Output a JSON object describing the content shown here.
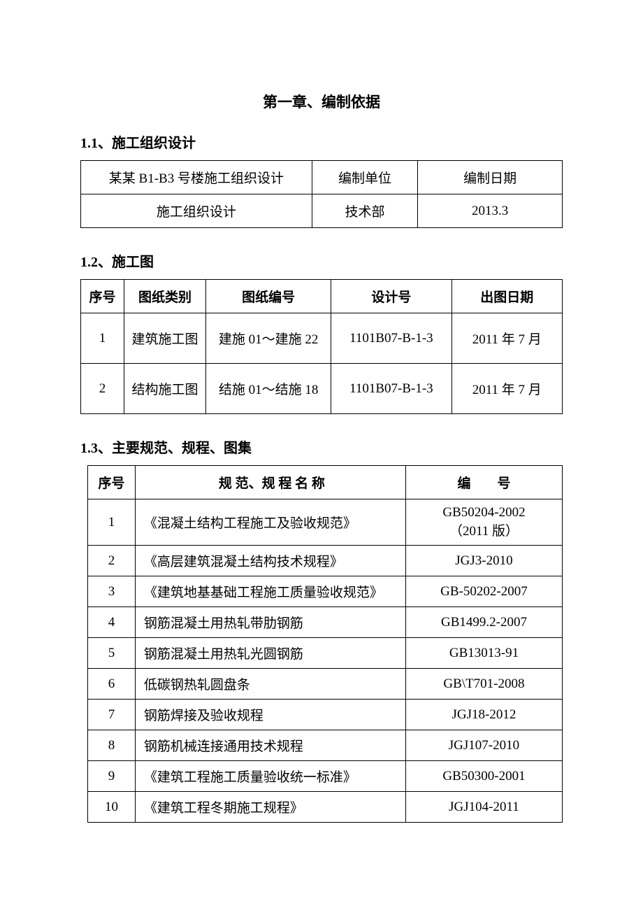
{
  "chapter_title": "第一章、编制依据",
  "section_1_1": {
    "title": "1.1、施工组织设计",
    "table": {
      "columns": [
        "某某 B1-B3 号楼施工组织设计",
        "编制单位",
        "编制日期"
      ],
      "rows": [
        [
          "施工组织设计",
          "技术部",
          "2013.3"
        ]
      ],
      "border_color": "#000000",
      "background_color": "#ffffff",
      "font_size": 19
    }
  },
  "section_1_2": {
    "title": "1.2、施工图",
    "table": {
      "columns": [
        "序号",
        "图纸类别",
        "图纸编号",
        "设计号",
        "出图日期"
      ],
      "rows": [
        [
          "1",
          "建筑施工图",
          "建施 01～建施 22",
          "1101B07-B-1-3",
          "2011 年 7 月"
        ],
        [
          "2",
          "结构施工图",
          "结施 01～结施 18",
          "1101B07-B-1-3",
          "2011 年 7 月"
        ]
      ],
      "border_color": "#000000",
      "background_color": "#ffffff",
      "font_size": 19
    }
  },
  "section_1_3": {
    "title": "1.3、主要规范、规程、图集",
    "table": {
      "columns": [
        "序号",
        "规 范、规 程 名 称",
        "编　　号"
      ],
      "rows": [
        {
          "num": "1",
          "name": "《混凝土结构工程施工及验收规范》",
          "code": "GB50204-2002",
          "code_line2": "（2011 版）"
        },
        {
          "num": "2",
          "name": "《高层建筑混凝土结构技术规程》",
          "code": "JGJ3-2010"
        },
        {
          "num": "3",
          "name": "《建筑地基基础工程施工质量验收规范》",
          "code": "GB-50202-2007"
        },
        {
          "num": "4",
          "name": "钢筋混凝土用热轧带肋钢筋",
          "code": "GB1499.2-2007"
        },
        {
          "num": "5",
          "name": "钢筋混凝土用热轧光圆钢筋",
          "code": "GB13013-91"
        },
        {
          "num": "6",
          "name": "低碳钢热轧圆盘条",
          "code": "GB\\T701-2008"
        },
        {
          "num": "7",
          "name": "钢筋焊接及验收规程",
          "code": "JGJ18-2012"
        },
        {
          "num": "8",
          "name": "钢筋机械连接通用技术规程",
          "code": "JGJ107-2010"
        },
        {
          "num": "9",
          "name": "《建筑工程施工质量验收统一标准》",
          "code": "GB50300-2001"
        },
        {
          "num": "10",
          "name": "《建筑工程冬期施工规程》",
          "code": "JGJ104-2011"
        }
      ],
      "border_color": "#000000",
      "background_color": "#ffffff",
      "font_size": 19
    }
  },
  "styling": {
    "page_background": "#ffffff",
    "text_color": "#000000",
    "font_family": "SimSun",
    "title_fontsize": 21,
    "section_fontsize": 20,
    "cell_fontsize": 19,
    "border_width": 1.5
  }
}
